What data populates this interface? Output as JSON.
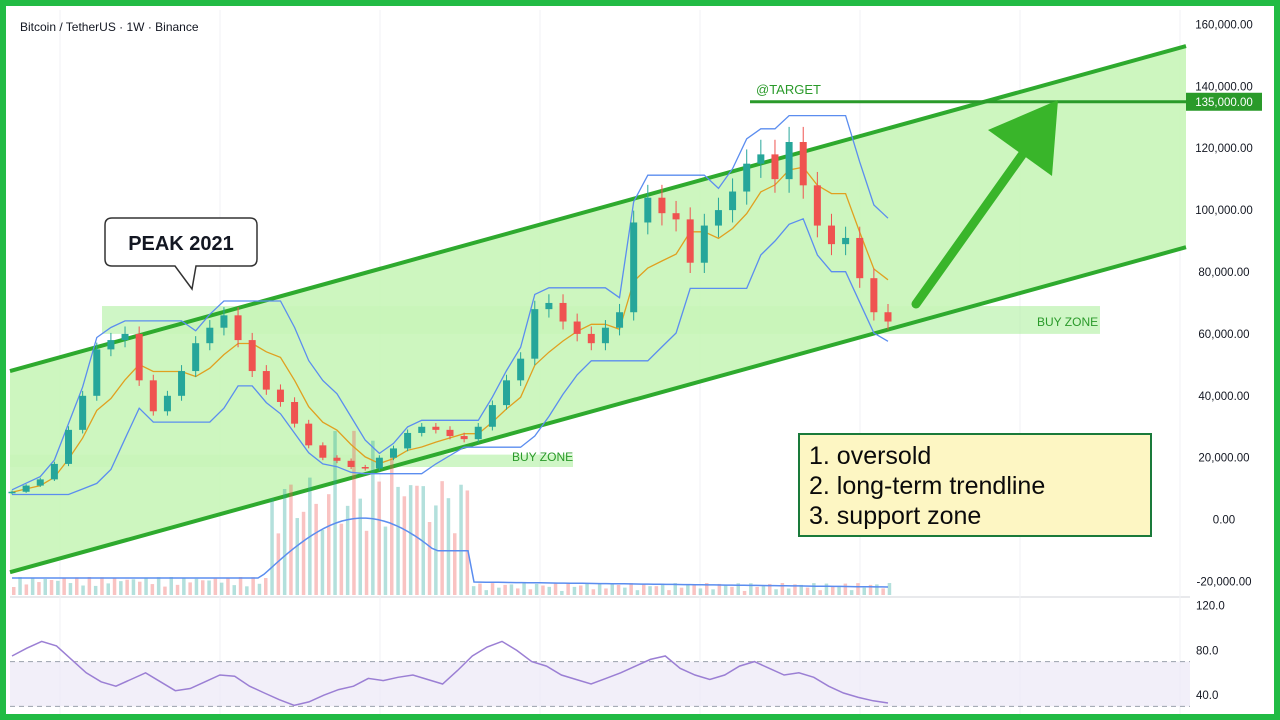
{
  "header": {
    "title": "Bitcoin / TetherUS · 1W · Binance"
  },
  "colors": {
    "frame": "#22bb44",
    "channel_fill": "#c8f5b8",
    "channel_line": "#2eaa2e",
    "buy_zone": "#a8ee98",
    "candle_up": "#26a69a",
    "candle_down": "#ef5350",
    "donchian_line": "#5b8def",
    "midline": "#e0a020",
    "volume_ma": "#5b8def",
    "rsi_line": "#9b7fd4",
    "target_line": "#2a9a2a",
    "arrow": "#39b52a",
    "note_bg": "#fdf6c3",
    "note_border": "#1a7a3a"
  },
  "annotations": {
    "peak_label": "PEAK 2021",
    "target_label": "@TARGET",
    "target_price_tag": "135,000.00",
    "buy_zone_left": "BUY ZONE",
    "buy_zone_right": "BUY ZONE",
    "notes": [
      "1. oversold",
      "2. long-term trendline",
      "3. support zone"
    ]
  },
  "chart_data": {
    "type": "line",
    "title": "Bitcoin / TetherUS · 1W · Binance",
    "y_axis_ticks": [
      "160,000.00",
      "140,000.00",
      "120,000.00",
      "100,000.00",
      "80,000.00",
      "60,000.00",
      "40,000.00",
      "20,000.00",
      "0.00",
      "-20,000.00"
    ],
    "y_tick_values": [
      160000,
      140000,
      120000,
      100000,
      80000,
      60000,
      40000,
      20000,
      0,
      -20000
    ],
    "ylim": [
      -25000,
      164000
    ],
    "target_price": 135000,
    "buy_zone_upper": [
      60000,
      69000
    ],
    "buy_zone_lower": [
      17000,
      21000
    ],
    "channel": {
      "upper": {
        "x_range": [
          0,
          1
        ],
        "y": [
          48000,
          153000
        ]
      },
      "lower": {
        "x_range": [
          0,
          1
        ],
        "y": [
          -17000,
          88000
        ]
      }
    },
    "series": [
      {
        "name": "",
        "values": [
          9000,
          11000,
          13000,
          18000,
          29000,
          40000,
          55000,
          58000,
          60000,
          45000,
          35000,
          40000,
          48000,
          57000,
          62000,
          66000,
          58000,
          48000,
          42000,
          38000,
          31000,
          24000,
          20000,
          19000,
          17000,
          16500,
          20000,
          23000,
          28000,
          30000,
          29000,
          27000,
          26000,
          30000,
          37000,
          45000,
          52000,
          68000,
          70000,
          64000,
          60000,
          57000,
          62000,
          67000,
          96000,
          104000,
          99000,
          97000,
          83000,
          95000,
          100000,
          106000,
          115000,
          118000,
          110000,
          122000,
          108000,
          95000,
          89000,
          91000,
          78000,
          67000,
          64000
        ]
      }
    ]
  },
  "rsi": {
    "ticks": [
      "120.0",
      "80.0",
      "40.0"
    ],
    "tick_values": [
      120,
      80,
      40
    ],
    "ylim": [
      25,
      125
    ],
    "upper_band": 70,
    "lower_band": 30,
    "values": [
      75,
      82,
      88,
      84,
      72,
      60,
      52,
      48,
      54,
      60,
      52,
      44,
      46,
      52,
      58,
      57,
      48,
      42,
      36,
      31,
      34,
      40,
      45,
      48,
      55,
      53,
      56,
      58,
      54,
      50,
      62,
      75,
      83,
      88,
      80,
      70,
      66,
      58,
      54,
      50,
      55,
      60,
      66,
      72,
      75,
      64,
      58,
      54,
      58,
      66,
      70,
      64,
      58,
      60,
      56,
      48,
      42,
      38,
      35,
      33
    ]
  }
}
